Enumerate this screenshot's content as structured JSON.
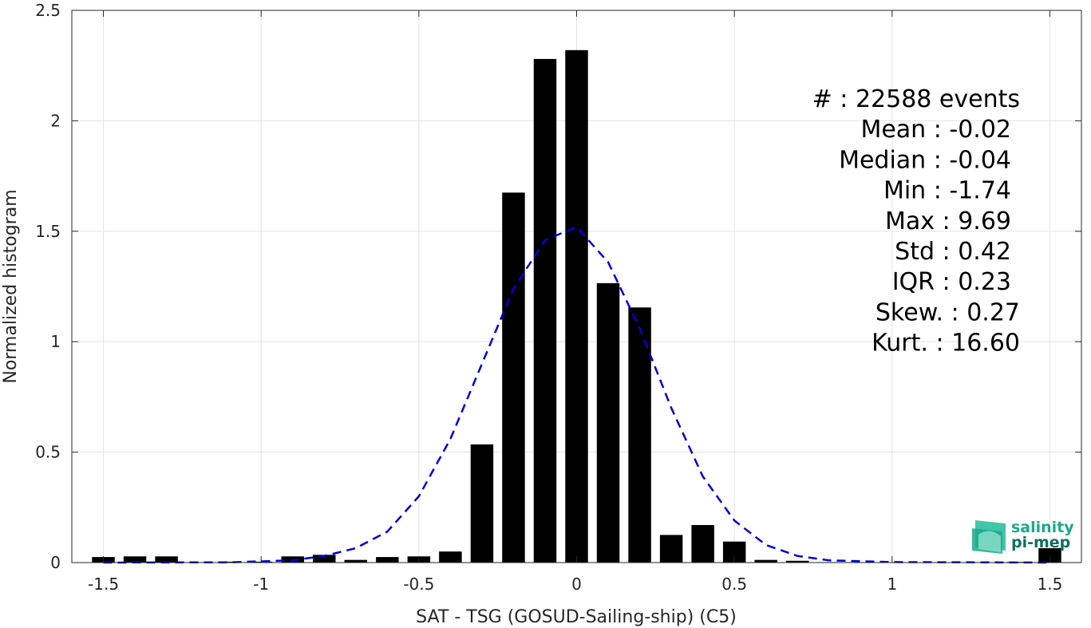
{
  "chart_data": {
    "type": "bar",
    "title": "",
    "xlabel": "SAT - TSG (GOSUD-Sailing-ship) (C5)",
    "ylabel": "Normalized histogram",
    "xlim": [
      -1.6,
      1.6
    ],
    "ylim": [
      0,
      2.5
    ],
    "grid": true,
    "xticks": [
      -1.5,
      -1,
      -0.5,
      0,
      0.5,
      1,
      1.5
    ],
    "xtick_labels": [
      "-1.5",
      "-1",
      "-0.5",
      "0",
      "0.5",
      "1",
      "1.5"
    ],
    "yticks": [
      0,
      0.5,
      1,
      1.5,
      2,
      2.5
    ],
    "ytick_labels": [
      "0",
      "0.5",
      "1",
      "1.5",
      "2",
      "2.5"
    ],
    "bar_color": "#000000",
    "bars": [
      {
        "x": -1.5,
        "y": 0.025
      },
      {
        "x": -1.4,
        "y": 0.028
      },
      {
        "x": -1.3,
        "y": 0.028
      },
      {
        "x": -1.2,
        "y": 0.002
      },
      {
        "x": -1.1,
        "y": 0.004
      },
      {
        "x": -1.0,
        "y": 0.004
      },
      {
        "x": -0.9,
        "y": 0.028
      },
      {
        "x": -0.8,
        "y": 0.035
      },
      {
        "x": -0.7,
        "y": 0.012
      },
      {
        "x": -0.6,
        "y": 0.025
      },
      {
        "x": -0.5,
        "y": 0.028
      },
      {
        "x": -0.4,
        "y": 0.05
      },
      {
        "x": -0.3,
        "y": 0.535
      },
      {
        "x": -0.2,
        "y": 1.675
      },
      {
        "x": -0.1,
        "y": 2.28
      },
      {
        "x": 0.0,
        "y": 2.32
      },
      {
        "x": 0.1,
        "y": 1.265
      },
      {
        "x": 0.2,
        "y": 1.155
      },
      {
        "x": 0.3,
        "y": 0.125
      },
      {
        "x": 0.4,
        "y": 0.17
      },
      {
        "x": 0.5,
        "y": 0.095
      },
      {
        "x": 0.6,
        "y": 0.012
      },
      {
        "x": 0.7,
        "y": 0.008
      },
      {
        "x": 0.8,
        "y": 0.002
      },
      {
        "x": 0.9,
        "y": 0.001
      },
      {
        "x": 1.0,
        "y": 0.001
      },
      {
        "x": 1.1,
        "y": 0.001
      },
      {
        "x": 1.2,
        "y": 0.001
      },
      {
        "x": 1.3,
        "y": 0.001
      },
      {
        "x": 1.4,
        "y": 0.003
      },
      {
        "x": 1.5,
        "y": 0.065
      }
    ],
    "fit_curve": {
      "style": "dashed",
      "color": "#0000dd",
      "points": [
        {
          "x": -1.5,
          "y": 0.0
        },
        {
          "x": -1.1,
          "y": 0.001
        },
        {
          "x": -0.9,
          "y": 0.01
        },
        {
          "x": -0.8,
          "y": 0.03
        },
        {
          "x": -0.7,
          "y": 0.065
        },
        {
          "x": -0.6,
          "y": 0.14
        },
        {
          "x": -0.5,
          "y": 0.3
        },
        {
          "x": -0.4,
          "y": 0.56
        },
        {
          "x": -0.3,
          "y": 0.9
        },
        {
          "x": -0.2,
          "y": 1.24
        },
        {
          "x": -0.1,
          "y": 1.46
        },
        {
          "x": -0.05,
          "y": 1.49
        },
        {
          "x": 0.0,
          "y": 1.52
        },
        {
          "x": 0.1,
          "y": 1.36
        },
        {
          "x": 0.2,
          "y": 1.06
        },
        {
          "x": 0.3,
          "y": 0.7
        },
        {
          "x": 0.4,
          "y": 0.39
        },
        {
          "x": 0.5,
          "y": 0.19
        },
        {
          "x": 0.6,
          "y": 0.08
        },
        {
          "x": 0.7,
          "y": 0.03
        },
        {
          "x": 0.8,
          "y": 0.01
        },
        {
          "x": 1.0,
          "y": 0.002
        },
        {
          "x": 1.5,
          "y": 0.0
        }
      ]
    },
    "annotations": [
      "#  : 22588 events",
      "Mean : -0.02",
      "Median : -0.04",
      "Min : -1.74",
      "Max : 9.69",
      "Std : 0.42",
      "IQR : 0.23",
      "Skew. : 0.27",
      "Kurt. : 16.60"
    ]
  },
  "logo": {
    "line1": "salinity",
    "line2": "pi-mep",
    "color_primary": "#1aaa8c",
    "color_secondary": "#0f6f5c"
  }
}
